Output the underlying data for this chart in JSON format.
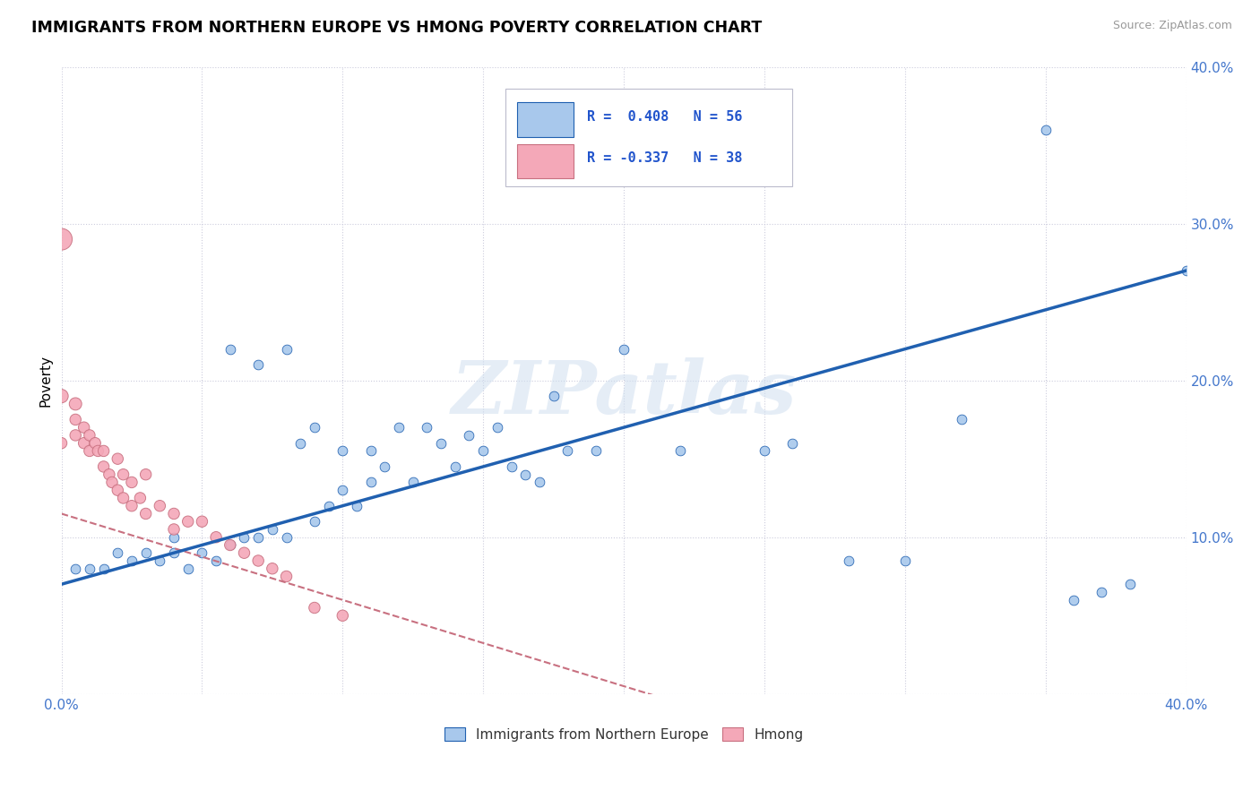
{
  "title": "IMMIGRANTS FROM NORTHERN EUROPE VS HMONG POVERTY CORRELATION CHART",
  "source": "Source: ZipAtlas.com",
  "ylabel": "Poverty",
  "xlim": [
    0.0,
    0.4
  ],
  "ylim": [
    0.0,
    0.4
  ],
  "legend_r1": "R =  0.408",
  "legend_n1": "N = 56",
  "legend_r2": "R = -0.337",
  "legend_n2": "N = 38",
  "blue_color": "#A8C8EC",
  "pink_color": "#F4A8B8",
  "blue_line_color": "#2060B0",
  "pink_line_color": "#C87080",
  "grid_color": "#CCCCDD",
  "background_color": "#FFFFFF",
  "watermark_text": "ZIPatlas",
  "blue_scatter_x": [
    0.005,
    0.01,
    0.015,
    0.02,
    0.025,
    0.03,
    0.035,
    0.04,
    0.04,
    0.045,
    0.05,
    0.055,
    0.06,
    0.06,
    0.065,
    0.07,
    0.07,
    0.075,
    0.08,
    0.08,
    0.085,
    0.09,
    0.09,
    0.095,
    0.1,
    0.1,
    0.105,
    0.11,
    0.11,
    0.115,
    0.12,
    0.125,
    0.13,
    0.135,
    0.14,
    0.145,
    0.15,
    0.155,
    0.16,
    0.165,
    0.17,
    0.175,
    0.18,
    0.19,
    0.2,
    0.22,
    0.25,
    0.26,
    0.28,
    0.3,
    0.32,
    0.35,
    0.36,
    0.37,
    0.38,
    0.4
  ],
  "blue_scatter_y": [
    0.08,
    0.08,
    0.08,
    0.09,
    0.085,
    0.09,
    0.085,
    0.09,
    0.1,
    0.08,
    0.09,
    0.085,
    0.095,
    0.22,
    0.1,
    0.1,
    0.21,
    0.105,
    0.1,
    0.22,
    0.16,
    0.11,
    0.17,
    0.12,
    0.155,
    0.13,
    0.12,
    0.135,
    0.155,
    0.145,
    0.17,
    0.135,
    0.17,
    0.16,
    0.145,
    0.165,
    0.155,
    0.17,
    0.145,
    0.14,
    0.135,
    0.19,
    0.155,
    0.155,
    0.22,
    0.155,
    0.155,
    0.16,
    0.085,
    0.085,
    0.175,
    0.36,
    0.06,
    0.065,
    0.07,
    0.27
  ],
  "pink_scatter_x": [
    0.0,
    0.0,
    0.0,
    0.005,
    0.005,
    0.005,
    0.008,
    0.008,
    0.01,
    0.01,
    0.012,
    0.013,
    0.015,
    0.015,
    0.017,
    0.018,
    0.02,
    0.02,
    0.022,
    0.022,
    0.025,
    0.025,
    0.028,
    0.03,
    0.03,
    0.035,
    0.04,
    0.04,
    0.045,
    0.05,
    0.055,
    0.06,
    0.065,
    0.07,
    0.075,
    0.08,
    0.09,
    0.1
  ],
  "pink_scatter_y": [
    0.29,
    0.19,
    0.16,
    0.185,
    0.175,
    0.165,
    0.17,
    0.16,
    0.165,
    0.155,
    0.16,
    0.155,
    0.155,
    0.145,
    0.14,
    0.135,
    0.15,
    0.13,
    0.14,
    0.125,
    0.135,
    0.12,
    0.125,
    0.14,
    0.115,
    0.12,
    0.115,
    0.105,
    0.11,
    0.11,
    0.1,
    0.095,
    0.09,
    0.085,
    0.08,
    0.075,
    0.055,
    0.05
  ],
  "pink_scatter_sizes": [
    300,
    120,
    80,
    100,
    80,
    80,
    80,
    80,
    80,
    80,
    80,
    80,
    80,
    80,
    80,
    80,
    80,
    80,
    80,
    80,
    80,
    80,
    80,
    80,
    80,
    80,
    80,
    80,
    80,
    80,
    80,
    80,
    80,
    80,
    80,
    80,
    80,
    80
  ]
}
